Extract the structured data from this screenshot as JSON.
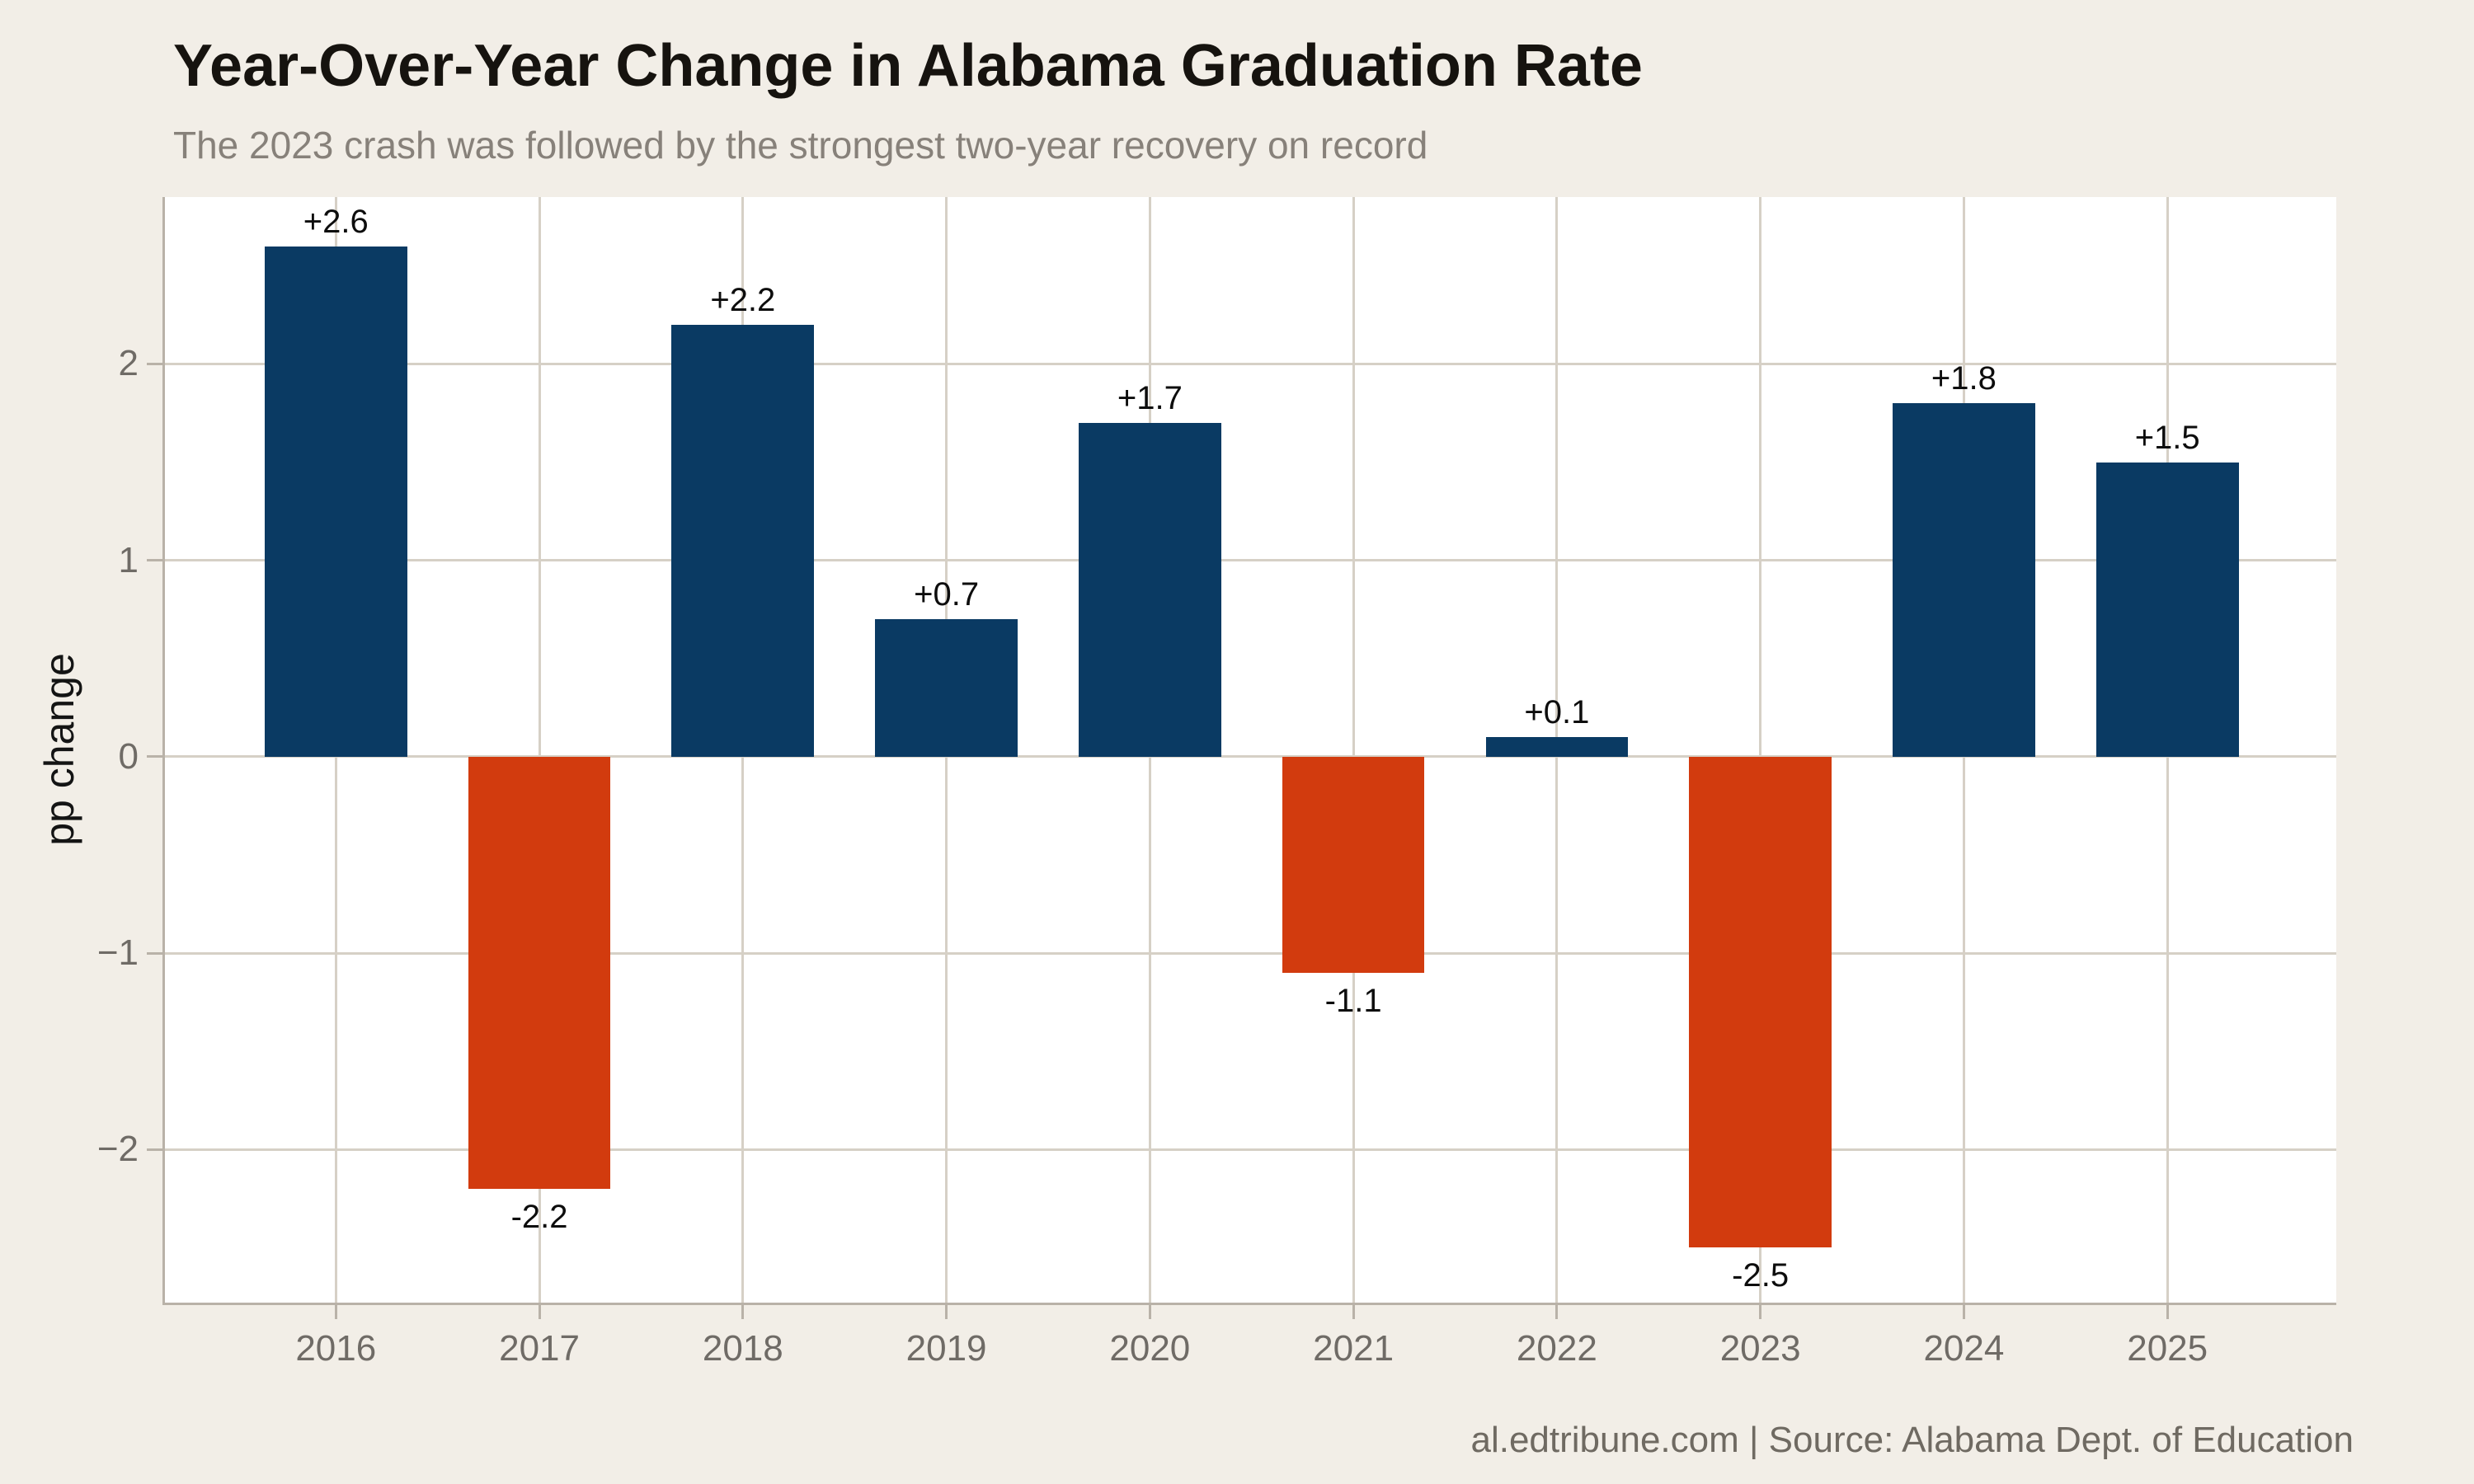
{
  "header": {
    "title": "Year-Over-Year Change in Alabama Graduation Rate",
    "subtitle": "The 2023 crash was followed by the strongest two-year recovery on record"
  },
  "footer": {
    "credit": "al.edtribune.com | Source: Alabama Dept. of Education"
  },
  "chart_data": {
    "type": "bar",
    "title": "Year-Over-Year Change in Alabama Graduation Rate",
    "subtitle": "The 2023 crash was followed by the strongest two-year recovery on record",
    "categories": [
      "2016",
      "2017",
      "2018",
      "2019",
      "2020",
      "2021",
      "2022",
      "2023",
      "2024",
      "2025"
    ],
    "values": [
      2.6,
      -2.2,
      2.2,
      0.7,
      1.7,
      -1.1,
      0.1,
      -2.5,
      1.8,
      1.5
    ],
    "bar_labels": [
      "+2.6",
      "-2.2",
      "+2.2",
      "+0.7",
      "+1.7",
      "-1.1",
      "+0.1",
      "-2.5",
      "+1.8",
      "+1.5"
    ],
    "xlabel": "",
    "ylabel": "pp change",
    "yticks": [
      -2,
      -1,
      0,
      1,
      2
    ],
    "ylim": [
      -2.78,
      2.85
    ],
    "grid": true,
    "legend": "none",
    "bar_width_fraction": 0.7,
    "colors": {
      "positive": "#0a3a63",
      "negative": "#d23b0e",
      "figure_background": "#f2eee7",
      "plot_background": "#ffffff",
      "gridline": "#d6d0c6",
      "axis": "#b9b2a8",
      "tick_label": "#6f6b66",
      "value_label": "#0d0d0d",
      "title": "#16130f",
      "subtitle": "#87817a",
      "footer": "#6f6a62"
    }
  }
}
